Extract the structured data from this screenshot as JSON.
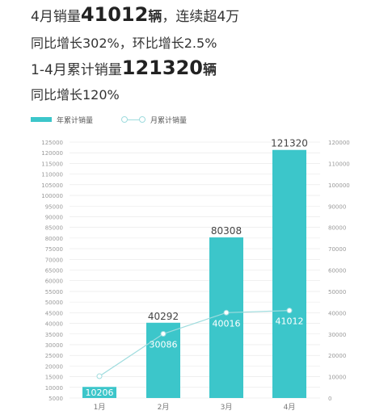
{
  "headline": {
    "line1_prefix": "4月销量",
    "line1_number": "41012",
    "line1_unit": "辆",
    "line1_suffix": "，连续超4万",
    "line2": "同比增长302%，环比增长2.5%",
    "line3_prefix": "1-4月累计销量",
    "line3_number": "121320",
    "line3_unit": "辆",
    "line4": "同比增长120%"
  },
  "legend": {
    "bar_label": "年累计销量",
    "line_label": "月累计销量"
  },
  "colors": {
    "bar": "#3cc6ca",
    "line": "#9fdcde",
    "grid": "#e6e6e6",
    "axis_text": "#999999"
  },
  "chart_data": {
    "type": "bar",
    "categories": [
      "1月",
      "2月",
      "3月",
      "4月"
    ],
    "series": [
      {
        "name": "年累计销量",
        "type": "bar",
        "axis": "left",
        "values": [
          10206,
          40292,
          80308,
          121320
        ],
        "labels": [
          "10206",
          "40292",
          "80308",
          "121320"
        ]
      },
      {
        "name": "月累计销量",
        "type": "line",
        "axis": "right",
        "values": [
          10206,
          30086,
          40016,
          41012
        ],
        "labels": [
          "10206",
          "30086",
          "40016",
          "41012"
        ]
      }
    ],
    "y_left": {
      "min": 5000,
      "max": 125000,
      "step": 5000,
      "ticks": [
        "5000",
        "10000",
        "15000",
        "20000",
        "25000",
        "30000",
        "35000",
        "40000",
        "45000",
        "50000",
        "55000",
        "60000",
        "65000",
        "70000",
        "75000",
        "80000",
        "85000",
        "90000",
        "95000",
        "100000",
        "105000",
        "110000",
        "115000",
        "120000",
        "125000"
      ]
    },
    "y_right": {
      "min": 0,
      "max": 120000,
      "step": 10000,
      "ticks": [
        "0",
        "10000",
        "20000",
        "30000",
        "40000",
        "50000",
        "60000",
        "70000",
        "80000",
        "90000",
        "100000",
        "110000",
        "120000"
      ]
    },
    "grid": true,
    "legend_position": "top-left"
  }
}
